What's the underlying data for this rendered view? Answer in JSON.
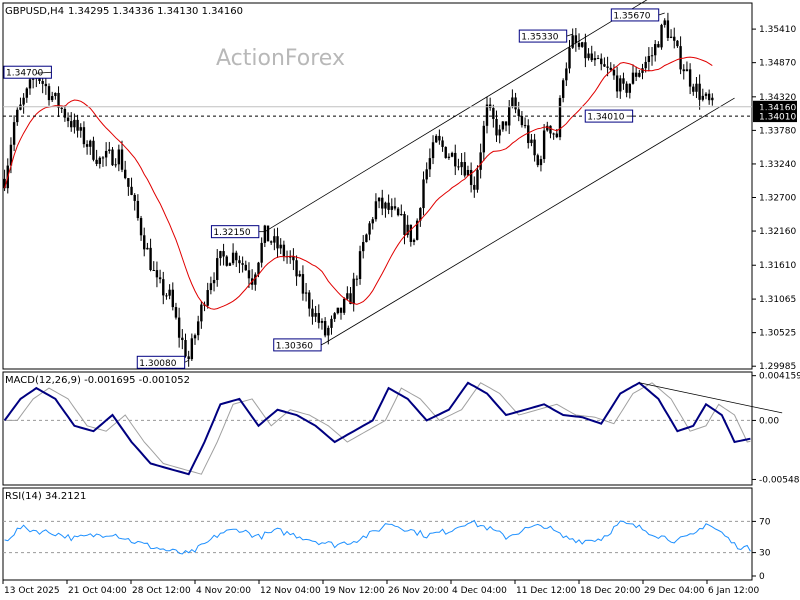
{
  "header": {
    "symbol": "GBPUSD,H4",
    "ohlc": "1.34295 1.34336 1.34130 1.34160"
  },
  "watermark": "ActionForex",
  "colors": {
    "candle": "#000000",
    "ma": "#e00000",
    "macd": "#000080",
    "signal": "#a0a0a0",
    "rsi": "#1e90ff",
    "channel": "#000000",
    "dashed": "#000000"
  },
  "chart_data": [
    {
      "type": "candlestick",
      "title": "GBPUSD,H4",
      "price_axis": {
        "range": [
          1.2994,
          1.3583
        ],
        "ticks": [
          "1.35410",
          "1.34870",
          "1.34320",
          "1.33780",
          "1.33240",
          "1.32700",
          "1.32160",
          "1.31610",
          "1.31065",
          "1.30525",
          "1.29985"
        ]
      },
      "current_price": "1.34160",
      "dashed_level": "1.34010",
      "time_labels": [
        "13 Oct 2025",
        "21 Oct 04:00",
        "28 Oct 12:00",
        "4 Nov 20:00",
        "12 Nov 04:00",
        "19 Nov 12:00",
        "26 Nov 20:00",
        "4 Dec 04:00",
        "11 Dec 12:00",
        "18 Dec 20:00",
        "29 Dec 04:00",
        "6 Jan 12:00"
      ],
      "annotations": [
        {
          "label": "1.34700",
          "bar": 10,
          "price": 1.347
        },
        {
          "label": "1.30080",
          "bar": 58,
          "price": 1.3008
        },
        {
          "label": "1.32150",
          "bar": 82,
          "price": 1.3215
        },
        {
          "label": "1.30360",
          "bar": 101,
          "price": 1.3036
        },
        {
          "label": "1.35330",
          "bar": 179,
          "price": 1.3533
        },
        {
          "label": "1.35670",
          "bar": 208,
          "price": 1.3567
        },
        {
          "label": "1.34010",
          "bar": 196,
          "price": 1.3401
        }
      ],
      "price_path": [
        [
          0,
          1.33
        ],
        [
          3,
          1.339
        ],
        [
          6,
          1.3425
        ],
        [
          10,
          1.347
        ],
        [
          14,
          1.344
        ],
        [
          19,
          1.3405
        ],
        [
          24,
          1.337
        ],
        [
          30,
          1.333
        ],
        [
          36,
          1.334
        ],
        [
          40,
          1.327
        ],
        [
          44,
          1.32
        ],
        [
          48,
          1.313
        ],
        [
          52,
          1.311
        ],
        [
          55,
          1.305
        ],
        [
          58,
          1.301
        ],
        [
          61,
          1.307
        ],
        [
          64,
          1.313
        ],
        [
          68,
          1.317
        ],
        [
          73,
          1.318
        ],
        [
          78,
          1.314
        ],
        [
          82,
          1.321
        ],
        [
          86,
          1.319
        ],
        [
          90,
          1.317
        ],
        [
          94,
          1.312
        ],
        [
          98,
          1.308
        ],
        [
          101,
          1.305
        ],
        [
          105,
          1.308
        ],
        [
          109,
          1.311
        ],
        [
          113,
          1.319
        ],
        [
          117,
          1.326
        ],
        [
          121,
          1.325
        ],
        [
          125,
          1.323
        ],
        [
          129,
          1.32
        ],
        [
          132,
          1.33
        ],
        [
          136,
          1.336
        ],
        [
          140,
          1.334
        ],
        [
          144,
          1.333
        ],
        [
          148,
          1.329
        ],
        [
          152,
          1.341
        ],
        [
          156,
          1.337
        ],
        [
          160,
          1.342
        ],
        [
          164,
          1.338
        ],
        [
          168,
          1.332
        ],
        [
          171,
          1.339
        ],
        [
          174,
          1.337
        ],
        [
          176,
          1.347
        ],
        [
          179,
          1.352
        ],
        [
          183,
          1.35
        ],
        [
          187,
          1.348
        ],
        [
          191,
          1.347
        ],
        [
          195,
          1.344
        ],
        [
          199,
          1.347
        ],
        [
          204,
          1.35
        ],
        [
          208,
          1.355
        ],
        [
          212,
          1.35
        ],
        [
          216,
          1.346
        ],
        [
          220,
          1.343
        ],
        [
          223,
          1.3416
        ]
      ],
      "channel": [
        {
          "from": [
            82,
            1.3215
          ],
          "to": [
            203,
            1.359
          ]
        },
        {
          "from": [
            101,
            1.3036
          ],
          "to": [
            230,
            1.343
          ]
        }
      ]
    },
    {
      "type": "line",
      "title": "MACD(12,26,9) -0.001695 -0.001052",
      "ylim": [
        -0.006,
        0.0045
      ],
      "ticks": [
        "0.004159",
        "0.00",
        "-0.005485"
      ],
      "macd_path": [
        [
          0,
          0.0
        ],
        [
          5,
          0.002
        ],
        [
          10,
          0.003
        ],
        [
          16,
          0.002
        ],
        [
          22,
          -0.0005
        ],
        [
          28,
          -0.001
        ],
        [
          34,
          0.0005
        ],
        [
          40,
          -0.002
        ],
        [
          46,
          -0.004
        ],
        [
          52,
          -0.0045
        ],
        [
          58,
          -0.005
        ],
        [
          63,
          -0.002
        ],
        [
          68,
          0.0015
        ],
        [
          74,
          0.002
        ],
        [
          80,
          -0.0005
        ],
        [
          86,
          0.001
        ],
        [
          92,
          0.0005
        ],
        [
          98,
          -0.0005
        ],
        [
          104,
          -0.002
        ],
        [
          110,
          -0.001
        ],
        [
          116,
          0.0
        ],
        [
          121,
          0.003
        ],
        [
          127,
          0.002
        ],
        [
          133,
          0.0
        ],
        [
          140,
          0.001
        ],
        [
          146,
          0.0035
        ],
        [
          152,
          0.0025
        ],
        [
          158,
          0.0005
        ],
        [
          164,
          0.001
        ],
        [
          170,
          0.0015
        ],
        [
          176,
          0.0005
        ],
        [
          182,
          0.0003
        ],
        [
          188,
          -0.0003
        ],
        [
          194,
          0.0025
        ],
        [
          200,
          0.0035
        ],
        [
          206,
          0.002
        ],
        [
          212,
          -0.001
        ],
        [
          217,
          -0.0005
        ],
        [
          221,
          0.0015
        ],
        [
          226,
          0.0005
        ],
        [
          230,
          -0.002
        ],
        [
          235,
          -0.0017
        ]
      ],
      "trendline": {
        "from": [
          200,
          0.0035
        ],
        "to": [
          245,
          0.0007
        ]
      }
    },
    {
      "type": "line",
      "title": "RSI(14) 34.2121",
      "ylim": [
        0,
        100
      ],
      "ticks": [
        "70",
        "30",
        "0"
      ],
      "levels": [
        70,
        30
      ],
      "rsi_path": [
        [
          0,
          45
        ],
        [
          5,
          62
        ],
        [
          10,
          58
        ],
        [
          16,
          55
        ],
        [
          22,
          48
        ],
        [
          28,
          52
        ],
        [
          34,
          55
        ],
        [
          40,
          45
        ],
        [
          46,
          38
        ],
        [
          52,
          32
        ],
        [
          58,
          28
        ],
        [
          63,
          40
        ],
        [
          68,
          55
        ],
        [
          74,
          60
        ],
        [
          80,
          50
        ],
        [
          86,
          58
        ],
        [
          92,
          52
        ],
        [
          98,
          45
        ],
        [
          104,
          40
        ],
        [
          110,
          45
        ],
        [
          116,
          55
        ],
        [
          121,
          68
        ],
        [
          127,
          60
        ],
        [
          133,
          52
        ],
        [
          140,
          58
        ],
        [
          146,
          70
        ],
        [
          152,
          62
        ],
        [
          158,
          50
        ],
        [
          164,
          60
        ],
        [
          170,
          65
        ],
        [
          176,
          50
        ],
        [
          182,
          45
        ],
        [
          188,
          48
        ],
        [
          194,
          68
        ],
        [
          200,
          62
        ],
        [
          206,
          52
        ],
        [
          212,
          45
        ],
        [
          217,
          52
        ],
        [
          221,
          68
        ],
        [
          226,
          55
        ],
        [
          230,
          40
        ],
        [
          235,
          34
        ]
      ]
    }
  ]
}
